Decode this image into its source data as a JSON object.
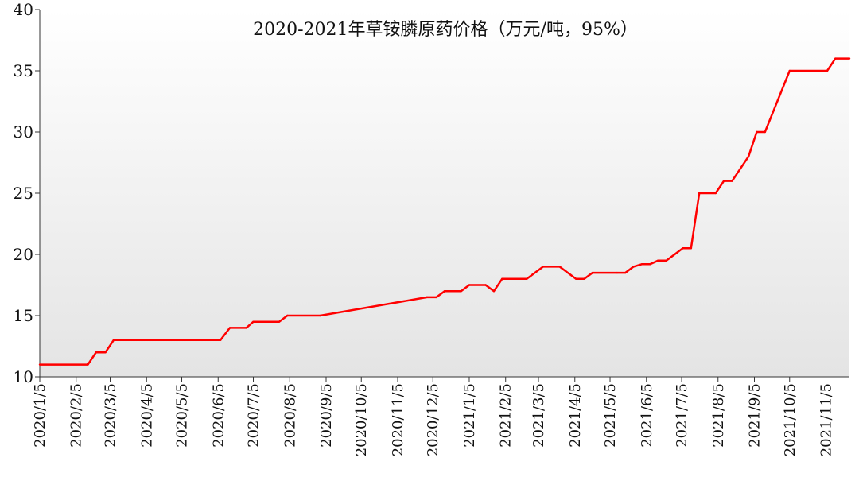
{
  "chart_data": {
    "type": "line",
    "title": "2020-2021年草铵膦原药价格（万元/吨，95%）",
    "xlabel": "",
    "ylabel": "",
    "ylim": [
      10,
      40
    ],
    "yticks": [
      10,
      15,
      20,
      25,
      30,
      35,
      40
    ],
    "xlim": [
      "2020-01-05",
      "2021-11-25"
    ],
    "xtick_labels": [
      "2020/1/5",
      "2020/2/5",
      "2020/3/5",
      "2020/4/5",
      "2020/5/5",
      "2020/6/5",
      "2020/7/5",
      "2020/8/5",
      "2020/9/5",
      "2020/10/5",
      "2020/11/5",
      "2020/12/5",
      "2021/1/5",
      "2021/2/5",
      "2021/3/5",
      "2021/4/5",
      "2021/5/5",
      "2021/6/5",
      "2021/7/5",
      "2021/8/5",
      "2021/9/5",
      "2021/10/5",
      "2021/11/5"
    ],
    "xtick_dates": [
      "2020-01-05",
      "2020-02-05",
      "2020-03-05",
      "2020-04-05",
      "2020-05-05",
      "2020-06-05",
      "2020-07-05",
      "2020-08-05",
      "2020-09-05",
      "2020-10-05",
      "2020-11-05",
      "2020-12-05",
      "2021-01-05",
      "2021-02-05",
      "2021-03-05",
      "2021-04-05",
      "2021-05-05",
      "2021-06-05",
      "2021-07-05",
      "2021-08-05",
      "2021-09-05",
      "2021-10-05",
      "2021-11-05"
    ],
    "grid": false,
    "background": "gradient white to light gray",
    "series": [
      {
        "color": "#ff0000",
        "x": [
          "2020-01-05",
          "2020-02-15",
          "2020-02-22",
          "2020-03-01",
          "2020-03-08",
          "2020-06-07",
          "2020-06-15",
          "2020-06-29",
          "2020-07-05",
          "2020-07-27",
          "2020-08-03",
          "2020-08-31",
          "2020-11-30",
          "2020-12-08",
          "2020-12-15",
          "2020-12-29",
          "2021-01-05",
          "2021-01-19",
          "2021-01-26",
          "2021-02-02",
          "2021-02-23",
          "2021-03-09",
          "2021-03-23",
          "2021-04-06",
          "2021-04-13",
          "2021-04-20",
          "2021-05-11",
          "2021-05-18",
          "2021-05-25",
          "2021-06-01",
          "2021-06-08",
          "2021-06-15",
          "2021-06-22",
          "2021-06-29",
          "2021-07-06",
          "2021-07-13",
          "2021-07-20",
          "2021-08-03",
          "2021-08-10",
          "2021-08-17",
          "2021-08-31",
          "2021-09-07",
          "2021-09-14",
          "2021-10-05",
          "2021-11-06",
          "2021-11-13",
          "2021-11-25"
        ],
        "y": [
          11,
          11,
          12,
          12,
          13,
          13,
          14,
          14,
          14.5,
          14.5,
          15,
          15,
          16.5,
          16.5,
          17,
          17,
          17.5,
          17.5,
          17,
          18,
          18,
          19,
          19,
          18,
          18,
          18.5,
          18.5,
          18.5,
          19,
          19.2,
          19.2,
          19.5,
          19.5,
          20,
          20.5,
          20.5,
          25,
          25,
          26,
          26,
          28,
          30,
          30,
          35,
          35,
          36,
          36
        ]
      }
    ]
  }
}
